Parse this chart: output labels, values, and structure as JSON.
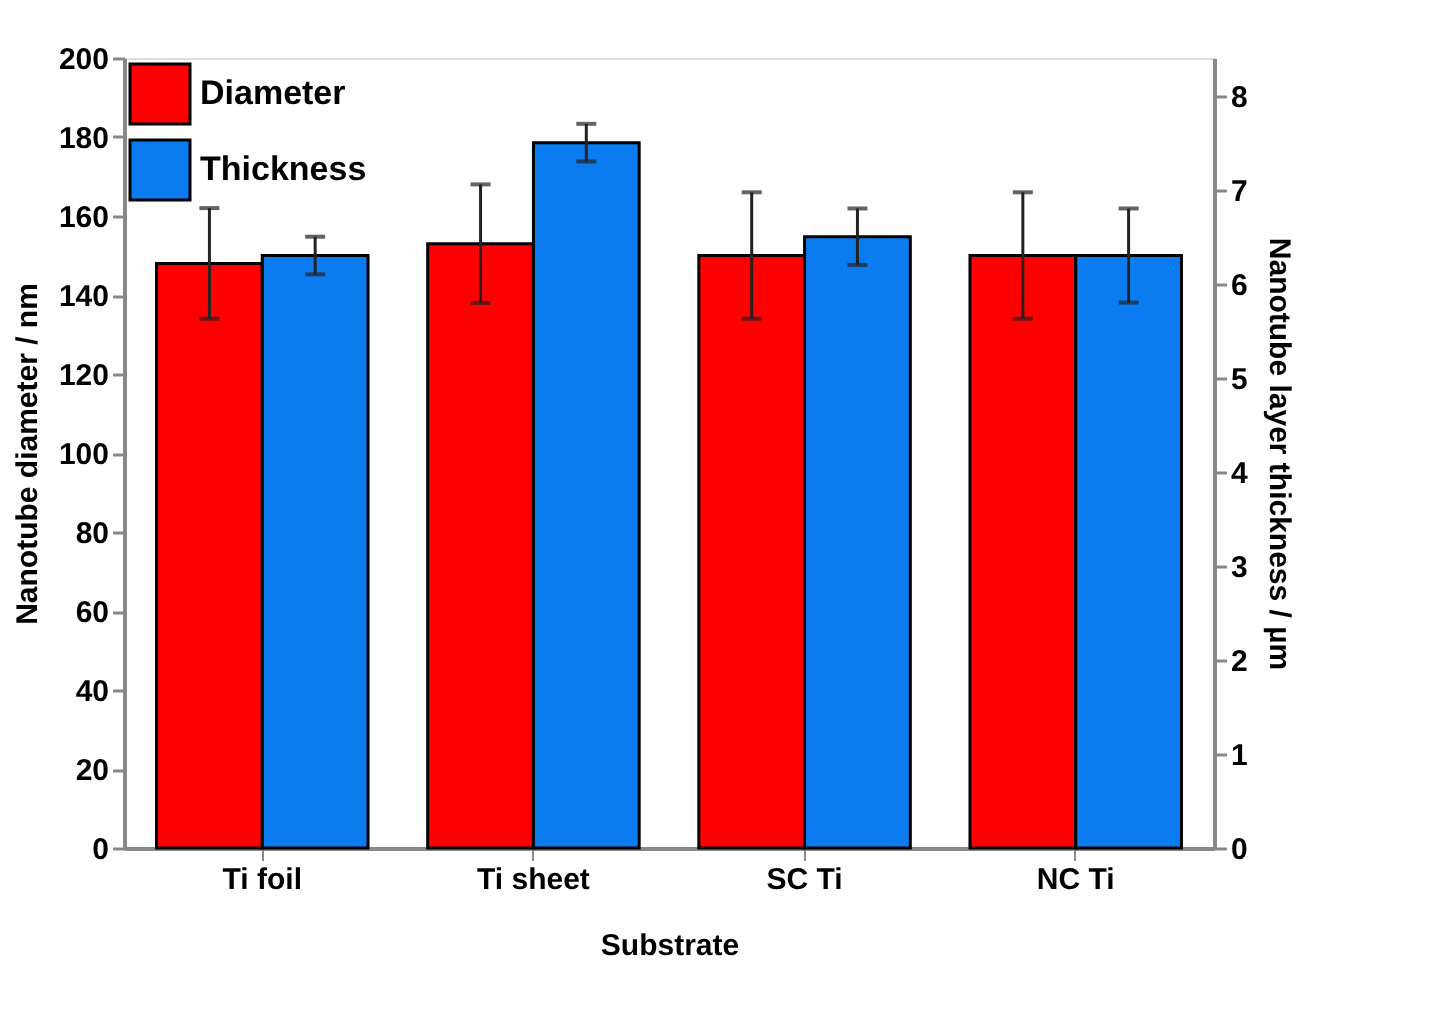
{
  "chart_data": {
    "type": "bar",
    "xlabel": "Substrate",
    "ylabel": "Nanotube diameter / nm",
    "y2label": "Nanotube layer thickness / µm",
    "categories": [
      "Ti foil",
      "Ti sheet",
      "SC Ti",
      "NC Ti"
    ],
    "series": [
      {
        "name": "Diameter",
        "color": "#ff0000",
        "values": [
          148,
          153,
          150,
          150
        ],
        "errors": [
          14,
          15,
          16,
          16
        ]
      },
      {
        "name": "Thickness",
        "color": "#0a7cf0",
        "axis": "y2",
        "values": [
          6.3,
          7.5,
          6.5,
          6.3
        ],
        "errors": [
          0.2,
          0.2,
          0.3,
          0.5
        ]
      }
    ],
    "ylim": [
      0,
      200
    ],
    "yticks": [
      0,
      20,
      40,
      60,
      80,
      100,
      120,
      140,
      160,
      180,
      200
    ],
    "y2lim": [
      0,
      8.4
    ],
    "y2ticks": [
      0,
      1,
      2,
      3,
      4,
      5,
      6,
      7,
      8
    ],
    "legend": "top left",
    "grid": false
  }
}
